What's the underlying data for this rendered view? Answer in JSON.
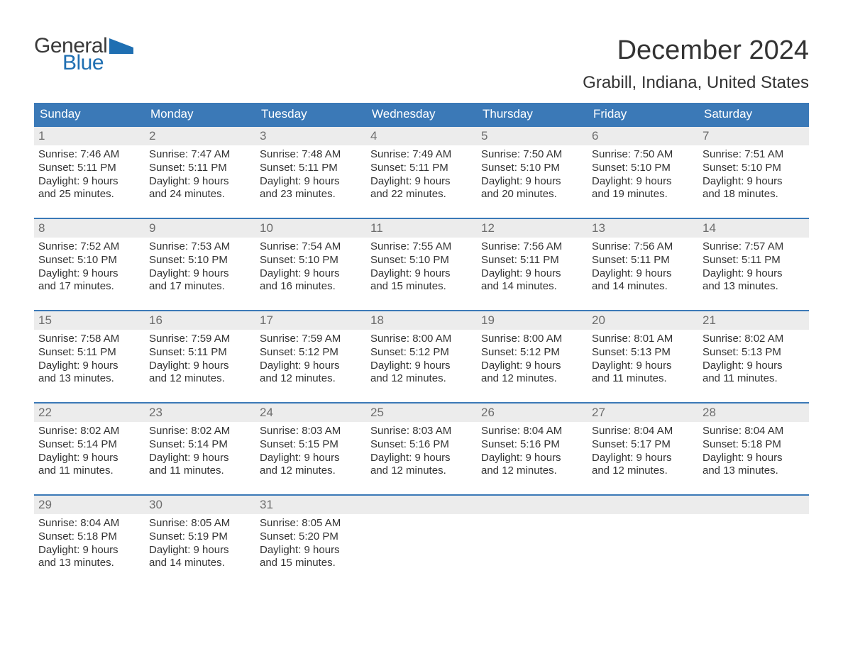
{
  "logo": {
    "general": "General",
    "blue": "Blue"
  },
  "title": {
    "month": "December 2024",
    "location": "Grabill, Indiana, United States"
  },
  "colors": {
    "header_bg": "#3b79b7",
    "header_text": "#ffffff",
    "row_rule": "#3b79b7",
    "daynum_bg": "#ececec",
    "daynum_text": "#6d6d6d",
    "body_text": "#333333",
    "logo_blue": "#1f6fb2",
    "background": "#ffffff"
  },
  "day_headers": [
    "Sunday",
    "Monday",
    "Tuesday",
    "Wednesday",
    "Thursday",
    "Friday",
    "Saturday"
  ],
  "weeks": [
    [
      {
        "n": "1",
        "sr": "Sunrise: 7:46 AM",
        "ss": "Sunset: 5:11 PM",
        "d1": "Daylight: 9 hours",
        "d2": "and 25 minutes."
      },
      {
        "n": "2",
        "sr": "Sunrise: 7:47 AM",
        "ss": "Sunset: 5:11 PM",
        "d1": "Daylight: 9 hours",
        "d2": "and 24 minutes."
      },
      {
        "n": "3",
        "sr": "Sunrise: 7:48 AM",
        "ss": "Sunset: 5:11 PM",
        "d1": "Daylight: 9 hours",
        "d2": "and 23 minutes."
      },
      {
        "n": "4",
        "sr": "Sunrise: 7:49 AM",
        "ss": "Sunset: 5:11 PM",
        "d1": "Daylight: 9 hours",
        "d2": "and 22 minutes."
      },
      {
        "n": "5",
        "sr": "Sunrise: 7:50 AM",
        "ss": "Sunset: 5:10 PM",
        "d1": "Daylight: 9 hours",
        "d2": "and 20 minutes."
      },
      {
        "n": "6",
        "sr": "Sunrise: 7:50 AM",
        "ss": "Sunset: 5:10 PM",
        "d1": "Daylight: 9 hours",
        "d2": "and 19 minutes."
      },
      {
        "n": "7",
        "sr": "Sunrise: 7:51 AM",
        "ss": "Sunset: 5:10 PM",
        "d1": "Daylight: 9 hours",
        "d2": "and 18 minutes."
      }
    ],
    [
      {
        "n": "8",
        "sr": "Sunrise: 7:52 AM",
        "ss": "Sunset: 5:10 PM",
        "d1": "Daylight: 9 hours",
        "d2": "and 17 minutes."
      },
      {
        "n": "9",
        "sr": "Sunrise: 7:53 AM",
        "ss": "Sunset: 5:10 PM",
        "d1": "Daylight: 9 hours",
        "d2": "and 17 minutes."
      },
      {
        "n": "10",
        "sr": "Sunrise: 7:54 AM",
        "ss": "Sunset: 5:10 PM",
        "d1": "Daylight: 9 hours",
        "d2": "and 16 minutes."
      },
      {
        "n": "11",
        "sr": "Sunrise: 7:55 AM",
        "ss": "Sunset: 5:10 PM",
        "d1": "Daylight: 9 hours",
        "d2": "and 15 minutes."
      },
      {
        "n": "12",
        "sr": "Sunrise: 7:56 AM",
        "ss": "Sunset: 5:11 PM",
        "d1": "Daylight: 9 hours",
        "d2": "and 14 minutes."
      },
      {
        "n": "13",
        "sr": "Sunrise: 7:56 AM",
        "ss": "Sunset: 5:11 PM",
        "d1": "Daylight: 9 hours",
        "d2": "and 14 minutes."
      },
      {
        "n": "14",
        "sr": "Sunrise: 7:57 AM",
        "ss": "Sunset: 5:11 PM",
        "d1": "Daylight: 9 hours",
        "d2": "and 13 minutes."
      }
    ],
    [
      {
        "n": "15",
        "sr": "Sunrise: 7:58 AM",
        "ss": "Sunset: 5:11 PM",
        "d1": "Daylight: 9 hours",
        "d2": "and 13 minutes."
      },
      {
        "n": "16",
        "sr": "Sunrise: 7:59 AM",
        "ss": "Sunset: 5:11 PM",
        "d1": "Daylight: 9 hours",
        "d2": "and 12 minutes."
      },
      {
        "n": "17",
        "sr": "Sunrise: 7:59 AM",
        "ss": "Sunset: 5:12 PM",
        "d1": "Daylight: 9 hours",
        "d2": "and 12 minutes."
      },
      {
        "n": "18",
        "sr": "Sunrise: 8:00 AM",
        "ss": "Sunset: 5:12 PM",
        "d1": "Daylight: 9 hours",
        "d2": "and 12 minutes."
      },
      {
        "n": "19",
        "sr": "Sunrise: 8:00 AM",
        "ss": "Sunset: 5:12 PM",
        "d1": "Daylight: 9 hours",
        "d2": "and 12 minutes."
      },
      {
        "n": "20",
        "sr": "Sunrise: 8:01 AM",
        "ss": "Sunset: 5:13 PM",
        "d1": "Daylight: 9 hours",
        "d2": "and 11 minutes."
      },
      {
        "n": "21",
        "sr": "Sunrise: 8:02 AM",
        "ss": "Sunset: 5:13 PM",
        "d1": "Daylight: 9 hours",
        "d2": "and 11 minutes."
      }
    ],
    [
      {
        "n": "22",
        "sr": "Sunrise: 8:02 AM",
        "ss": "Sunset: 5:14 PM",
        "d1": "Daylight: 9 hours",
        "d2": "and 11 minutes."
      },
      {
        "n": "23",
        "sr": "Sunrise: 8:02 AM",
        "ss": "Sunset: 5:14 PM",
        "d1": "Daylight: 9 hours",
        "d2": "and 11 minutes."
      },
      {
        "n": "24",
        "sr": "Sunrise: 8:03 AM",
        "ss": "Sunset: 5:15 PM",
        "d1": "Daylight: 9 hours",
        "d2": "and 12 minutes."
      },
      {
        "n": "25",
        "sr": "Sunrise: 8:03 AM",
        "ss": "Sunset: 5:16 PM",
        "d1": "Daylight: 9 hours",
        "d2": "and 12 minutes."
      },
      {
        "n": "26",
        "sr": "Sunrise: 8:04 AM",
        "ss": "Sunset: 5:16 PM",
        "d1": "Daylight: 9 hours",
        "d2": "and 12 minutes."
      },
      {
        "n": "27",
        "sr": "Sunrise: 8:04 AM",
        "ss": "Sunset: 5:17 PM",
        "d1": "Daylight: 9 hours",
        "d2": "and 12 minutes."
      },
      {
        "n": "28",
        "sr": "Sunrise: 8:04 AM",
        "ss": "Sunset: 5:18 PM",
        "d1": "Daylight: 9 hours",
        "d2": "and 13 minutes."
      }
    ],
    [
      {
        "n": "29",
        "sr": "Sunrise: 8:04 AM",
        "ss": "Sunset: 5:18 PM",
        "d1": "Daylight: 9 hours",
        "d2": "and 13 minutes."
      },
      {
        "n": "30",
        "sr": "Sunrise: 8:05 AM",
        "ss": "Sunset: 5:19 PM",
        "d1": "Daylight: 9 hours",
        "d2": "and 14 minutes."
      },
      {
        "n": "31",
        "sr": "Sunrise: 8:05 AM",
        "ss": "Sunset: 5:20 PM",
        "d1": "Daylight: 9 hours",
        "d2": "and 15 minutes."
      },
      {
        "empty": true
      },
      {
        "empty": true
      },
      {
        "empty": true
      },
      {
        "empty": true
      }
    ]
  ]
}
